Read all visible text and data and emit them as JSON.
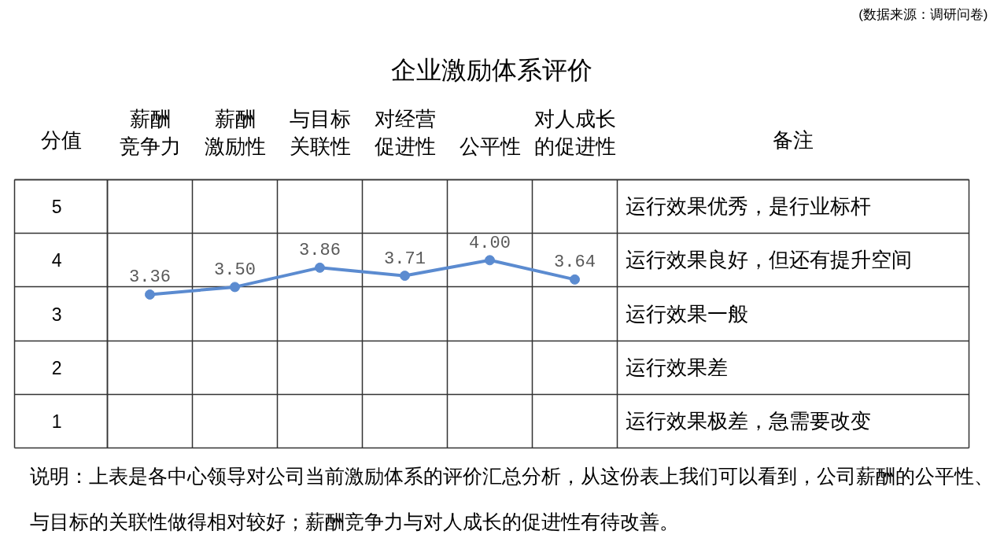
{
  "chart_data": {
    "type": "line",
    "title": "企业激励体系评价",
    "ylabel": "分值",
    "categories": [
      "薪酬竞争力",
      "薪酬激励性",
      "与目标关联性",
      "对经营促进性",
      "公平性",
      "对人成长的促进性"
    ],
    "series": [
      {
        "color": "#5b8bd0",
        "values": [
          3.36,
          3.5,
          3.86,
          3.71,
          4.0,
          3.64
        ],
        "value_labels": [
          "3.36",
          "3.50",
          "3.86",
          "3.71",
          "4.00",
          "3.64"
        ]
      }
    ],
    "ylim": [
      0.5,
      5.5
    ],
    "yticks": [
      1,
      2,
      3,
      4,
      5
    ],
    "y2_categories": [
      "运行效果优秀，是行业标杆",
      "运行效果良好，但还有提升空间",
      "运行效果一般",
      "运行效果差",
      "运行效果极差，急需要改变"
    ],
    "grid": true,
    "marker": "circle",
    "line_style": "solid",
    "annotations": [
      "(数据来源：调研问卷)",
      "备注",
      "说明：上表是各中心领导对公司当前激励体系的评价汇总分析，从这份表上我们可以看到，公司薪酬的公平性、与目标的关联性做得相对较好；薪酬竞争力与对人成长的促进性有待改善。"
    ]
  }
}
